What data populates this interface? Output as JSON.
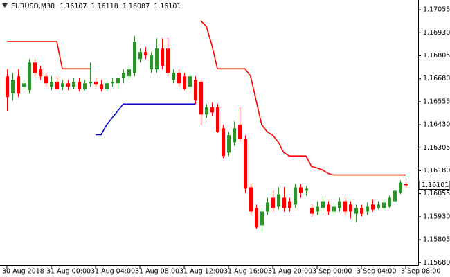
{
  "chart_data": {
    "type": "candlestick",
    "title": "EURUSD,M30",
    "x": [
      "30 Aug 2018",
      null,
      null,
      null,
      null,
      null,
      null,
      null,
      "31 Aug 00:00",
      null,
      null,
      null,
      null,
      null,
      null,
      null,
      "31 Aug 04:00",
      null,
      null,
      null,
      null,
      null,
      null,
      null,
      "31 Aug 08:00",
      null,
      null,
      null,
      null,
      null,
      null,
      null,
      "31 Aug 12:00",
      null,
      null,
      null,
      null,
      null,
      null,
      null,
      "31 Aug 16:00",
      null,
      null,
      null,
      null,
      null,
      null,
      null,
      "31 Aug 20:00",
      null,
      null,
      null,
      null,
      null,
      null,
      null,
      "3 Sep 00:00",
      null,
      null,
      null,
      null,
      null,
      null,
      null,
      "3 Sep 04:00",
      null,
      null,
      null,
      null,
      null,
      null,
      null,
      "3 Sep 08:00"
    ],
    "open": [
      1.16693,
      1.16599,
      1.16693,
      1.16637,
      1.16618,
      1.16768,
      1.16731,
      1.16693,
      1.16637,
      1.16663,
      1.16637,
      1.16655,
      1.16637,
      1.16663,
      1.16625,
      1.16655,
      1.16663,
      1.16648,
      1.16625,
      1.16655,
      1.16655,
      1.16686,
      1.16693,
      1.16712,
      1.16787,
      1.16825,
      1.16731,
      1.16731,
      1.16844,
      1.16844,
      1.16674,
      1.16712,
      1.16693,
      1.16637,
      1.16674,
      1.16663,
      1.16486,
      1.16524,
      1.16524,
      1.1641,
      1.16278,
      1.16335,
      1.16429,
      1.16354,
      1.1609,
      1.15977,
      1.15883,
      1.15958,
      1.16033,
      1.15984,
      1.16033,
      1.16014,
      1.15996,
      1.1609,
      1.16071,
      1.15977,
      1.15958,
      1.15977,
      1.15996,
      1.15958,
      1.15977,
      1.16014,
      1.15996,
      1.15946,
      1.15977,
      1.15958,
      1.15996,
      1.15977,
      1.15977,
      1.15984,
      1.16014,
      1.1606,
      1.16107
    ],
    "high": [
      1.16731,
      1.16712,
      1.16731,
      1.16674,
      1.16787,
      1.16787,
      1.1675,
      1.16712,
      1.16693,
      1.16693,
      1.16674,
      1.16674,
      1.16686,
      1.16686,
      1.16674,
      1.16768,
      1.16686,
      1.16674,
      1.16667,
      1.16686,
      1.16693,
      1.16731,
      1.1675,
      1.16912,
      1.16844,
      1.16852,
      1.16825,
      1.169,
      1.169,
      1.169,
      1.16731,
      1.16731,
      1.16712,
      1.16712,
      1.16693,
      1.16674,
      1.16542,
      1.1655,
      1.16542,
      1.16429,
      1.16391,
      1.16448,
      1.16524,
      1.16373,
      1.16109,
      1.15996,
      1.15977,
      1.16033,
      1.16071,
      1.1609,
      1.1609,
      1.16033,
      1.16109,
      1.16109,
      1.16097,
      1.15996,
      1.16014,
      1.16044,
      1.16014,
      1.16007,
      1.16033,
      1.16033,
      1.16014,
      1.15996,
      1.15996,
      1.16007,
      1.16022,
      1.16014,
      1.16022,
      1.16044,
      1.16075,
      1.16128,
      1.16118
    ],
    "low": [
      1.16505,
      1.16561,
      1.1658,
      1.16618,
      1.16599,
      1.16693,
      1.16674,
      1.16637,
      1.16618,
      1.16618,
      1.16618,
      1.16618,
      1.16625,
      1.1661,
      1.16618,
      1.16637,
      1.16637,
      1.1661,
      1.1661,
      1.16637,
      1.16625,
      1.16655,
      1.16674,
      1.16693,
      1.16768,
      1.16787,
      1.16712,
      1.16712,
      1.16731,
      1.16693,
      1.16655,
      1.16637,
      1.16618,
      1.16618,
      1.16542,
      1.16429,
      1.16467,
      1.16475,
      1.16384,
      1.16248,
      1.1626,
      1.16316,
      1.16335,
      1.1606,
      1.15939,
      1.15864,
      1.15845,
      1.15939,
      1.15958,
      1.15969,
      1.15958,
      1.15958,
      1.15977,
      1.16033,
      1.16044,
      1.15931,
      1.15939,
      1.15958,
      1.15939,
      1.15939,
      1.15958,
      1.15939,
      1.1592,
      1.15901,
      1.15931,
      1.15939,
      1.15958,
      1.15969,
      1.15969,
      1.15977,
      1.16007,
      1.16052,
      1.16087
    ],
    "close": [
      1.1658,
      1.16674,
      1.16599,
      1.16655,
      1.16768,
      1.16712,
      1.16693,
      1.16655,
      1.16663,
      1.16625,
      1.16655,
      1.16637,
      1.16663,
      1.16625,
      1.16655,
      1.16663,
      1.16648,
      1.16625,
      1.16655,
      1.16663,
      1.16686,
      1.16712,
      1.16731,
      1.16882,
      1.16825,
      1.16806,
      1.16806,
      1.16844,
      1.1675,
      1.16712,
      1.16712,
      1.16655,
      1.16625,
      1.16693,
      1.16561,
      1.16486,
      1.16524,
      1.16497,
      1.16391,
      1.1626,
      1.16373,
      1.1641,
      1.16354,
      1.16082,
      1.15958,
      1.15871,
      1.15958,
      1.16007,
      1.15977,
      1.16052,
      1.15977,
      1.15977,
      1.1609,
      1.1606,
      1.16082,
      1.15946,
      1.15984,
      1.16014,
      1.15958,
      1.15984,
      1.16014,
      1.15958,
      1.15958,
      1.15977,
      1.15946,
      1.15984,
      1.15969,
      1.15996,
      1.16007,
      1.16033,
      1.16071,
      1.16116,
      1.16101
    ],
    "up_color": "#2f8f2f",
    "down_color": "#ff0000",
    "lines": [
      {
        "color": "#ff0000",
        "values": [
          1.16882,
          1.16882,
          1.16882,
          1.16882,
          1.16882,
          1.16882,
          1.16882,
          1.16882,
          1.16882,
          1.16882,
          1.16734,
          1.16734,
          1.16734,
          1.16734,
          1.16734,
          1.16734,
          null,
          null,
          null,
          null,
          null,
          null,
          null,
          null,
          null,
          null,
          null,
          null,
          null,
          null,
          null,
          null,
          null,
          null,
          null,
          1.16995,
          1.16965,
          1.16863,
          1.16734,
          1.16734,
          1.16734,
          1.16734,
          1.16734,
          1.16734,
          1.16693,
          1.16561,
          1.16429,
          1.16391,
          1.16373,
          1.16335,
          1.16278,
          1.1626,
          1.1626,
          1.1626,
          1.1626,
          1.16203,
          1.16195,
          1.16184,
          1.16165,
          1.16157,
          1.16157,
          1.16157,
          1.16157,
          1.16157,
          1.16157,
          1.16157,
          1.16157,
          1.16157,
          1.16157,
          1.16157,
          1.16157,
          1.16157,
          1.16157
        ]
      },
      {
        "color": "#0000cc",
        "values": [
          null,
          null,
          null,
          null,
          null,
          null,
          null,
          null,
          null,
          null,
          null,
          null,
          null,
          null,
          null,
          null,
          1.16376,
          1.16376,
          1.16429,
          1.16467,
          1.16505,
          1.16542,
          1.16542,
          1.16542,
          1.16542,
          1.16542,
          1.16542,
          1.16542,
          1.16542,
          1.16542,
          1.16542,
          1.16542,
          1.16542,
          1.16542,
          1.16542,
          null,
          null,
          null,
          null,
          null,
          null,
          null,
          null,
          null,
          null,
          null,
          null,
          null,
          null,
          null,
          null,
          null,
          null,
          null,
          null,
          null,
          null,
          null,
          null,
          null,
          null,
          null,
          null,
          null,
          null,
          null,
          null,
          null,
          null,
          null,
          null,
          null,
          null
        ]
      }
    ],
    "ylim": [
      1.15666,
      1.17108
    ],
    "yticks": [
      1.17055,
      {
        "value": 1.1693,
        "label": "1.16930"
      },
      1.16805,
      {
        "value": 1.1668,
        "label": "1.16680"
      },
      1.16555,
      {
        "value": 1.1643,
        "label": "1.16430"
      },
      1.16305,
      {
        "value": 1.1618,
        "label": "1.16180"
      },
      1.16055,
      {
        "value": 1.1593,
        "label": "1.15930"
      },
      1.15805,
      {
        "value": 1.1568,
        "label": "1.15680"
      }
    ]
  }
}
